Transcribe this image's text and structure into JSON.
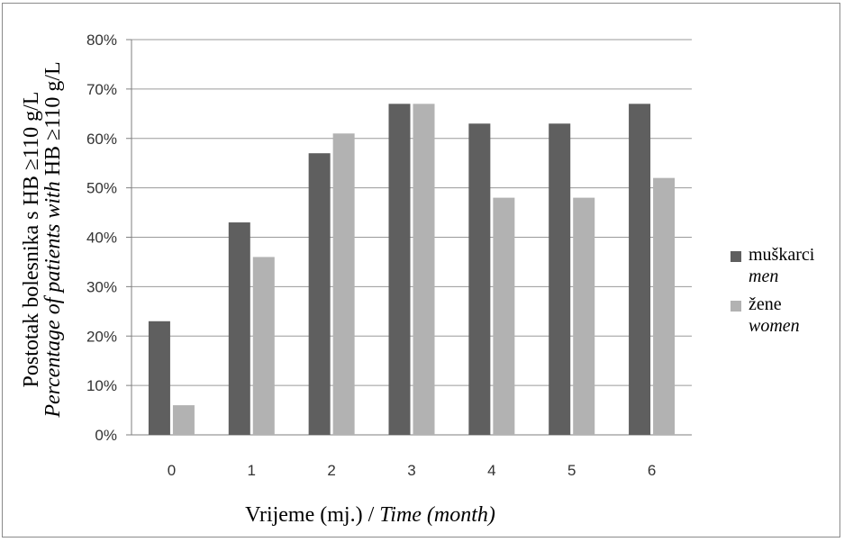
{
  "chart_data": {
    "type": "bar",
    "categories": [
      "0",
      "1",
      "2",
      "3",
      "4",
      "5",
      "6"
    ],
    "series": [
      {
        "name": "muškarci",
        "name_en": "men",
        "values": [
          23,
          43,
          57,
          67,
          63,
          63,
          67
        ],
        "color": "#5f5f5f"
      },
      {
        "name": "žene",
        "name_en": "women",
        "values": [
          6,
          36,
          61,
          67,
          48,
          48,
          52
        ],
        "color": "#b2b2b2"
      }
    ],
    "yticks": [
      "0%",
      "10%",
      "20%",
      "30%",
      "40%",
      "50%",
      "60%",
      "70%",
      "80%"
    ],
    "ylim": [
      0,
      80
    ],
    "grid": true,
    "legend_position": "right",
    "xlabel": {
      "main": "Vrijeme (mj.) / ",
      "italic": "Time (month)"
    },
    "ylabel": {
      "line1_prefix": "Postotak bolesnika s HB ",
      "line1_rel": "≥",
      "line1_suffix": "110 g/L",
      "line2_italic": "Percentage of patients with",
      "line2_prefix": " HB ",
      "line2_rel": "≥",
      "line2_suffix": "110 g/L"
    }
  }
}
